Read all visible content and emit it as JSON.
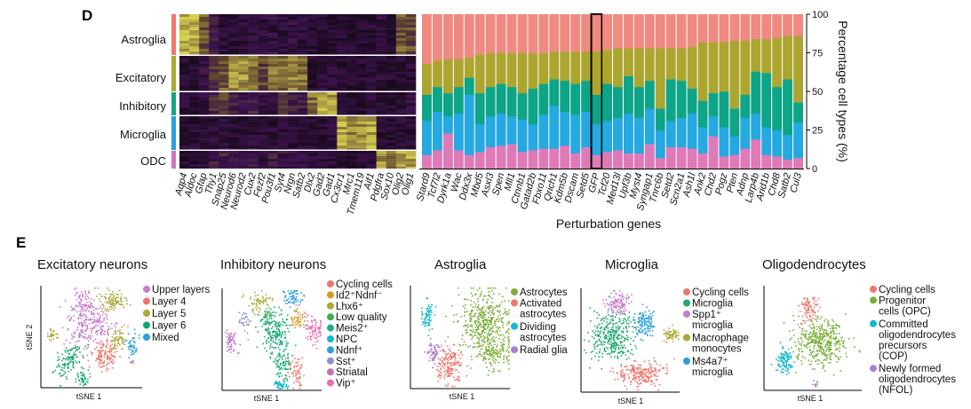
{
  "panel_labels": {
    "d": "D",
    "e": "E"
  },
  "chart_data": [
    {
      "type": "heatmap",
      "row_labels": [
        "Astroglia",
        "Excitatory",
        "Inhibitory",
        "Microglia",
        "ODC"
      ],
      "row_colors": [
        "#F2786E",
        "#A9A935",
        "#18A57F",
        "#2A9FDB",
        "#CF77B8"
      ],
      "genes": [
        "Aqp4",
        "Aldoc",
        "Gfap",
        "Thy1",
        "Snap25",
        "Neurod6",
        "Neurod2",
        "Cux2",
        "Fezf2",
        "Pou3f1",
        "Syt4",
        "Nrgn",
        "Satb2",
        "Dlx2",
        "Gad2",
        "Gad1",
        "Cx3cr1",
        "Mrc1",
        "Tmem119",
        "Aif1",
        "Pdgfra",
        "Sox10",
        "Olig2",
        "Olig1"
      ],
      "mean_expression": [
        [
          0.9,
          0.9,
          0.6,
          0.35,
          0.15,
          0.15,
          0.15,
          0.2,
          0.15,
          0.2,
          0.15,
          0.2,
          0.15,
          0.1,
          0.1,
          0.1,
          0.15,
          0.1,
          0.1,
          0.1,
          0.15,
          0.1,
          0.6,
          0.55
        ],
        [
          0.1,
          0.1,
          0.2,
          0.45,
          0.6,
          0.8,
          0.8,
          0.7,
          0.5,
          0.7,
          0.65,
          0.75,
          0.7,
          0.1,
          0.15,
          0.15,
          0.1,
          0.12,
          0.1,
          0.12,
          0.12,
          0.1,
          0.12,
          0.12
        ],
        [
          0.12,
          0.12,
          0.2,
          0.4,
          0.5,
          0.3,
          0.3,
          0.35,
          0.2,
          0.2,
          0.45,
          0.35,
          0.3,
          0.7,
          0.9,
          0.85,
          0.12,
          0.12,
          0.1,
          0.12,
          0.12,
          0.1,
          0.15,
          0.2
        ],
        [
          0.12,
          0.12,
          0.12,
          0.15,
          0.15,
          0.12,
          0.12,
          0.15,
          0.12,
          0.12,
          0.15,
          0.12,
          0.12,
          0.1,
          0.1,
          0.12,
          0.85,
          0.75,
          0.8,
          0.85,
          0.12,
          0.1,
          0.12,
          0.12
        ],
        [
          0.12,
          0.15,
          0.2,
          0.3,
          0.35,
          0.25,
          0.25,
          0.3,
          0.2,
          0.3,
          0.25,
          0.25,
          0.2,
          0.15,
          0.15,
          0.15,
          0.12,
          0.12,
          0.12,
          0.12,
          0.8,
          0.7,
          0.85,
          0.85
        ]
      ]
    },
    {
      "type": "bar",
      "stacked": true,
      "xlabel": "Perturbation genes",
      "ylabel": "Percentage cell types (%)",
      "ylim": [
        0,
        100
      ],
      "yticks": [
        "0",
        "25",
        "50",
        "75",
        "100"
      ],
      "highlighted": "GFP",
      "categories": [
        "Stard9",
        "Tcf7l2",
        "Dyrk1a",
        "Wac",
        "Ddx3x",
        "Mbd5",
        "Asxl3",
        "Spen",
        "Mll1",
        "Ctnnb1",
        "Gatad2b",
        "Fbxo11",
        "Qrich1",
        "Kdm5b",
        "Dscam",
        "Setd5",
        "GFP",
        "Tcf20",
        "Med13l",
        "Upf3b",
        "Myst4",
        "Syngap1",
        "Tnrc6b",
        "Setd2",
        "Scn2a1",
        "Ash1l",
        "Ank2",
        "Chd2",
        "Pogz",
        "Pten",
        "Adnp",
        "Larp4b",
        "Arid1b",
        "Chd8",
        "Satb2",
        "Cul3"
      ],
      "series": [
        {
          "name": "ODC",
          "color": "#DF7AB8",
          "values": [
            9,
            12,
            23,
            12,
            9,
            11,
            14,
            15,
            16,
            11,
            12,
            13,
            13,
            15,
            10,
            14,
            9,
            11,
            12,
            10,
            10,
            16,
            7,
            14,
            14,
            13,
            10,
            21,
            8,
            9,
            13,
            19,
            9,
            8,
            6,
            7
          ]
        },
        {
          "name": "Microglia",
          "color": "#26A8E0",
          "values": [
            22,
            25,
            11,
            24,
            39,
            18,
            20,
            21,
            18,
            21,
            17,
            22,
            28,
            22,
            25,
            23,
            20,
            20,
            21,
            26,
            23,
            23,
            18,
            17,
            19,
            23,
            17,
            13,
            19,
            12,
            20,
            17,
            18,
            17,
            16,
            23
          ]
        },
        {
          "name": "Inhibitory",
          "color": "#0DA487",
          "values": [
            17,
            16,
            15,
            17,
            11,
            20,
            19,
            19,
            19,
            17,
            23,
            20,
            17,
            20,
            20,
            20,
            19,
            24,
            20,
            24,
            20,
            18,
            14,
            27,
            24,
            16,
            17,
            15,
            23,
            18,
            15,
            27,
            35,
            28,
            36,
            13
          ]
        },
        {
          "name": "Excitatory",
          "color": "#ACA631",
          "values": [
            20,
            17,
            22,
            18,
            13,
            25,
            22,
            20,
            22,
            26,
            23,
            20,
            18,
            19,
            21,
            19,
            28,
            22,
            25,
            18,
            25,
            21,
            39,
            20,
            21,
            27,
            38,
            33,
            32,
            44,
            35,
            21,
            22,
            32,
            28,
            43
          ]
        },
        {
          "name": "Astroglia",
          "color": "#F08A80",
          "values": [
            32,
            30,
            29,
            29,
            28,
            26,
            25,
            25,
            25,
            25,
            25,
            25,
            24,
            24,
            24,
            24,
            24,
            23,
            22,
            22,
            22,
            22,
            22,
            22,
            22,
            21,
            18,
            18,
            18,
            17,
            17,
            16,
            16,
            15,
            14,
            14
          ]
        }
      ]
    },
    {
      "type": "scatter",
      "title": "Excitatory neurons",
      "xlabel": "tSNE 1",
      "ylabel": "tSNE 2",
      "legend": [
        {
          "lines": [
            "Upper layers"
          ],
          "color": "#C77CC9"
        },
        {
          "lines": [
            "Layer 4"
          ],
          "color": "#F0776C"
        },
        {
          "lines": [
            "Layer 5"
          ],
          "color": "#A9A935"
        },
        {
          "lines": [
            "Layer 6"
          ],
          "color": "#14A56C"
        },
        {
          "lines": [
            "Mixed"
          ],
          "color": "#2B9FDB"
        }
      ]
    },
    {
      "type": "scatter",
      "title": "Inhibitory neurons",
      "xlabel": "tSNE 1",
      "legend": [
        {
          "lines": [
            "Cycling cells"
          ],
          "color": "#F0776C"
        },
        {
          "lines": [
            "Id2⁺Ndnf⁻"
          ],
          "color": "#D89A2A"
        },
        {
          "lines": [
            "Lhx6⁺"
          ],
          "color": "#A9A935"
        },
        {
          "lines": [
            "Low quality"
          ],
          "color": "#3DAE4C"
        },
        {
          "lines": [
            "Meis2⁺"
          ],
          "color": "#1EAD7E"
        },
        {
          "lines": [
            "NPC"
          ],
          "color": "#17B8C8"
        },
        {
          "lines": [
            "Ndnf⁺"
          ],
          "color": "#2B9FDB"
        },
        {
          "lines": [
            "Sst⁺"
          ],
          "color": "#8F8FD0"
        },
        {
          "lines": [
            "Striatal"
          ],
          "color": "#C170C4"
        },
        {
          "lines": [
            "Vip⁺"
          ],
          "color": "#EE6CAE"
        }
      ]
    },
    {
      "type": "scatter",
      "title": "Astroglia",
      "xlabel": "tSNE 1",
      "legend": [
        {
          "lines": [
            "Astrocytes"
          ],
          "color": "#7CAE3A"
        },
        {
          "lines": [
            "Activated",
            "astrocytes"
          ],
          "color": "#F0776C"
        },
        {
          "lines": [
            "Dividing",
            "astrocytes"
          ],
          "color": "#17B8C8"
        },
        {
          "lines": [
            "Radial glia"
          ],
          "color": "#B07CCE"
        }
      ]
    },
    {
      "type": "scatter",
      "title": "Microglia",
      "xlabel": "tSNE 1",
      "legend": [
        {
          "lines": [
            "Cycling cells"
          ],
          "color": "#F0776C"
        },
        {
          "lines": [
            "Microglia"
          ],
          "color": "#20A86E"
        },
        {
          "lines": [
            "Spp1⁺",
            "microglia"
          ],
          "color": "#C77CC9"
        },
        {
          "lines": [
            "Macrophage",
            "monocytes"
          ],
          "color": "#A9A935"
        },
        {
          "lines": [
            "Ms4a7⁺",
            "microglia"
          ],
          "color": "#2B9FDB"
        }
      ]
    },
    {
      "type": "scatter",
      "title": "Oligodendrocytes",
      "xlabel": "tSNE 1",
      "legend": [
        {
          "lines": [
            "Cycling cells"
          ],
          "color": "#F0776C"
        },
        {
          "lines": [
            "Progenitor",
            "cells (OPC)"
          ],
          "color": "#7CAE3A"
        },
        {
          "lines": [
            "Committed",
            "oligodendrocytes",
            "precursors",
            "(COP)"
          ],
          "color": "#17B8C8"
        },
        {
          "lines": [
            "Newly formed",
            "oligodendrocytes",
            "(NFOL)"
          ],
          "color": "#B07CCE"
        }
      ]
    }
  ]
}
